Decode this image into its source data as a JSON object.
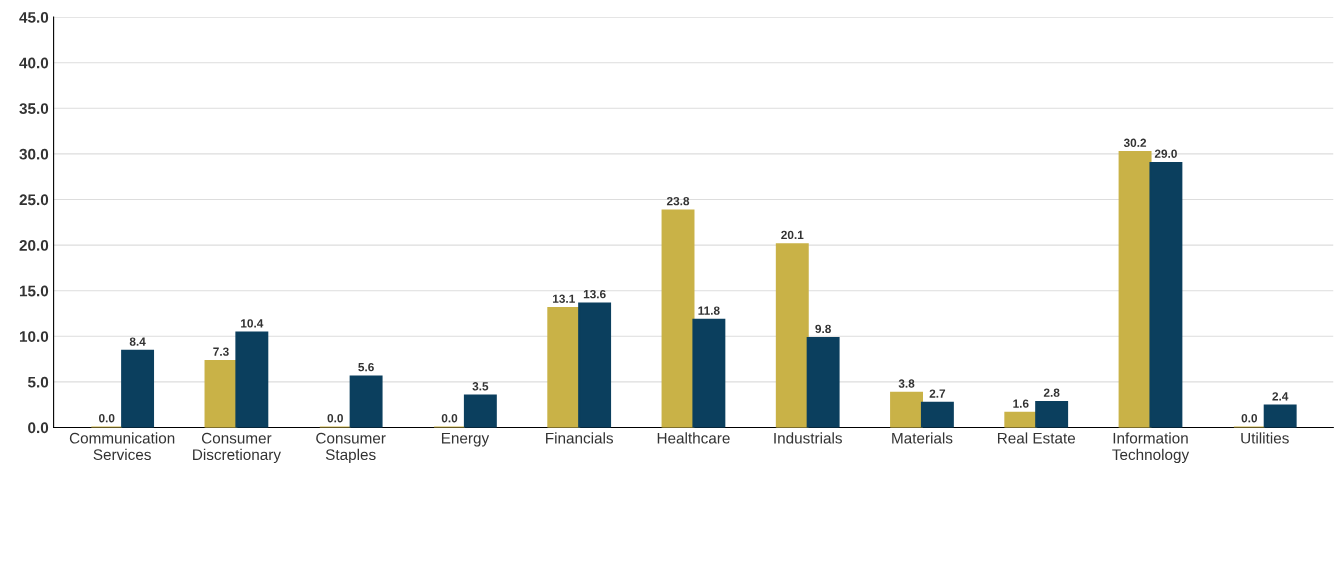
{
  "chart_data": {
    "type": "bar",
    "categories": [
      "Communication\nServices",
      "Consumer\nDiscretionary",
      "Consumer\nStaples",
      "Energy",
      "Financials",
      "Healthcare",
      "Industrials",
      "Materials",
      "Real Estate",
      "Information\nTechnology",
      "Utilities"
    ],
    "series": [
      {
        "color": "#c9b247",
        "values": [
          0.0,
          7.3,
          0.0,
          0.0,
          13.1,
          23.8,
          20.1,
          3.8,
          1.6,
          30.2,
          0.0
        ],
        "value_labels": [
          "0.0",
          "7.3",
          "0.0",
          "0.0",
          "13.1",
          "23.8",
          "20.1",
          "3.8",
          "1.6",
          "30.2",
          "0.0"
        ]
      },
      {
        "color": "#0b3f5e",
        "values": [
          8.4,
          10.4,
          5.6,
          3.5,
          13.6,
          11.8,
          9.8,
          2.7,
          2.8,
          29.0,
          2.4
        ],
        "value_labels": [
          "8.4",
          "10.4",
          "5.6",
          "3.5",
          "13.6",
          "11.8",
          "9.8",
          "2.7",
          "2.8",
          "29.0",
          "2.4"
        ]
      }
    ],
    "ylim": [
      0,
      45
    ],
    "yticks": [
      {
        "value": 0,
        "label": "0.0"
      },
      {
        "value": 5,
        "label": "5.0"
      },
      {
        "value": 10,
        "label": "10.0"
      },
      {
        "value": 15,
        "label": "15.0"
      },
      {
        "value": 20,
        "label": "20.0"
      },
      {
        "value": 25,
        "label": "25.0"
      },
      {
        "value": 30,
        "label": "30.0"
      },
      {
        "value": 35,
        "label": "35.0"
      },
      {
        "value": 40,
        "label": "40.0"
      },
      {
        "value": 45,
        "label": "45.0"
      }
    ],
    "grid": "y"
  }
}
